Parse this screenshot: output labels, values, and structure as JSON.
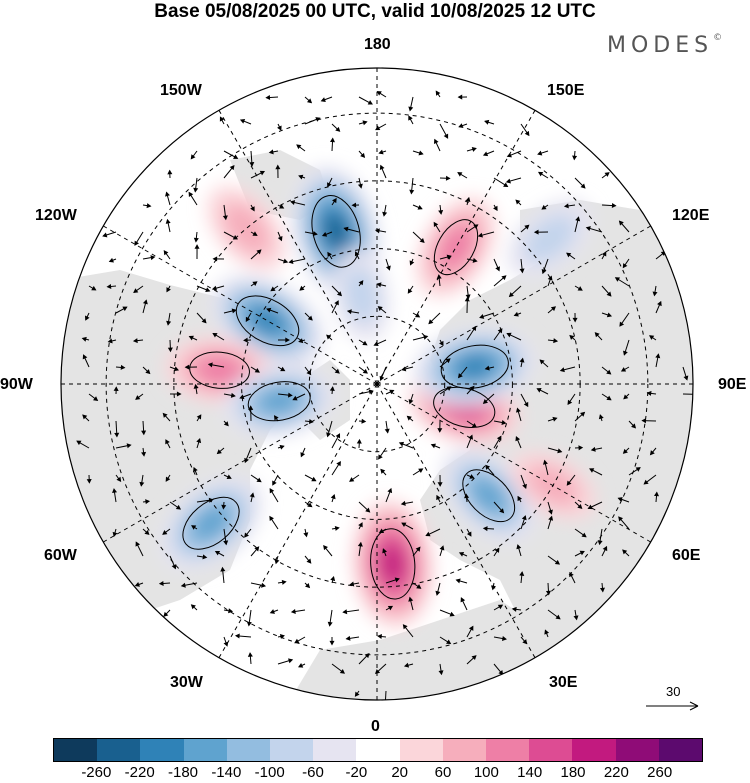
{
  "title": "Base 05/08/2025 00 UTC, valid 10/08/2025 12 UTC",
  "brand": "MODES",
  "brand_mark": "©",
  "longitude_labels": {
    "top": "180",
    "bottom": "0",
    "left": "90W",
    "right": "90E",
    "upper_left_1": "150W",
    "upper_left_2": "120W",
    "upper_right_1": "150E",
    "upper_right_2": "120E",
    "lower_left_1": "60W",
    "lower_left_2": "30W",
    "lower_right_1": "60E",
    "lower_right_2": "30E"
  },
  "reference_vector": "30",
  "colorbar": {
    "colors": [
      "#0e3a5c",
      "#19608f",
      "#2f82b7",
      "#5fa3cf",
      "#93bde0",
      "#c3d4ec",
      "#e6e4f1",
      "#ffffff",
      "#fbd6da",
      "#f6aebc",
      "#ee7fa6",
      "#dd4c93",
      "#c21a7f",
      "#8f0c77",
      "#5c0a6e"
    ],
    "ticks": [
      "-260",
      "-220",
      "-180",
      "-140",
      "-100",
      "-60",
      "-20",
      "20",
      "60",
      "100",
      "140",
      "180",
      "220",
      "260"
    ]
  },
  "anomalies": [
    {
      "lon": -165,
      "lat": 55,
      "value": -220
    },
    {
      "lon": -120,
      "lat": 62,
      "value": -180
    },
    {
      "lon": -95,
      "lat": 55,
      "value": 120
    },
    {
      "lon": -80,
      "lat": 68,
      "value": -140
    },
    {
      "lon": -50,
      "lat": 42,
      "value": -160
    },
    {
      "lon": 5,
      "lat": 50,
      "value": 200
    },
    {
      "lon": 45,
      "lat": 55,
      "value": -140
    },
    {
      "lon": 75,
      "lat": 70,
      "value": 140
    },
    {
      "lon": 100,
      "lat": 68,
      "value": -180
    },
    {
      "lon": 150,
      "lat": 55,
      "value": 120
    },
    {
      "lon": -140,
      "lat": 45,
      "value": 80
    },
    {
      "lon": 130,
      "lat": 40,
      "value": -80
    },
    {
      "lon": -170,
      "lat": 70,
      "value": -60
    },
    {
      "lon": 60,
      "lat": 45,
      "value": 60
    }
  ]
}
